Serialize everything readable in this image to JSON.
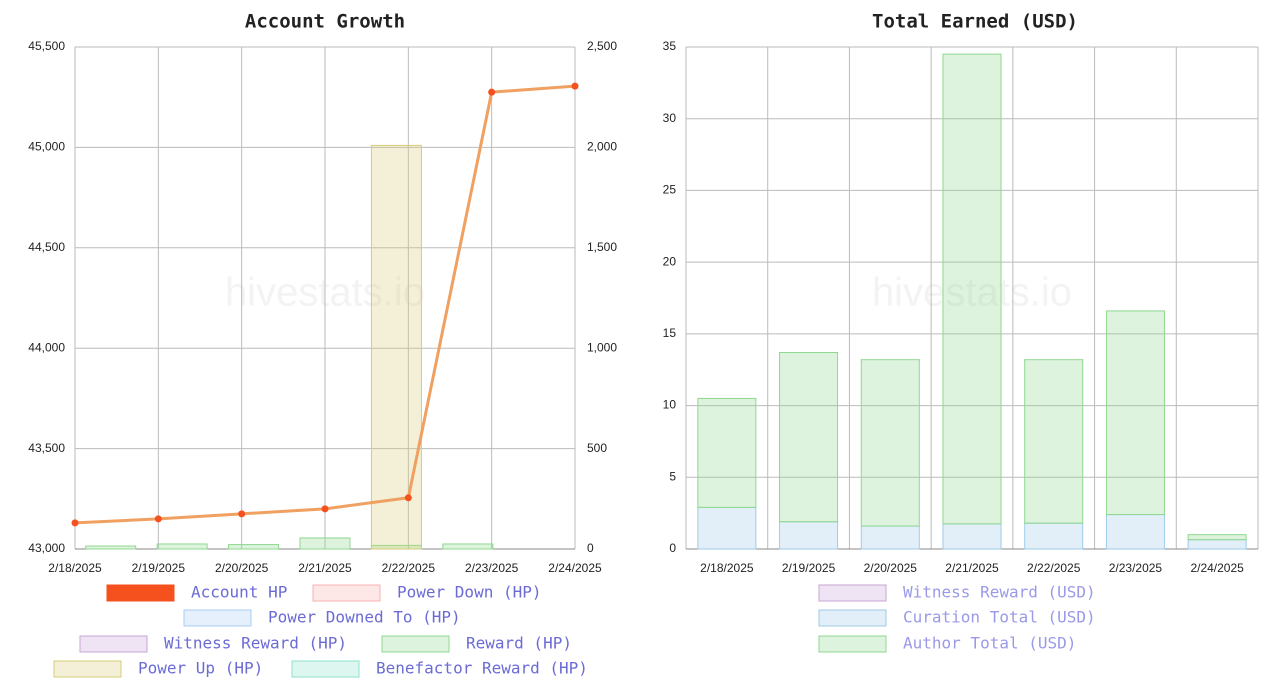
{
  "chart_data": [
    {
      "type": "line",
      "title": "Account Growth",
      "watermark": "hivestats.io",
      "categories": [
        "2/18/2025",
        "2/19/2025",
        "2/20/2025",
        "2/21/2025",
        "2/22/2025",
        "2/23/2025",
        "2/24/2025"
      ],
      "ylim": [
        43000,
        45500
      ],
      "yticks": [
        {
          "value": 43000,
          "label": "43,000"
        },
        {
          "value": 43500,
          "label": "43,500"
        },
        {
          "value": 44000,
          "label": "44,000"
        },
        {
          "value": 44500,
          "label": "44,500"
        },
        {
          "value": 45000,
          "label": "45,000"
        },
        {
          "value": 45500,
          "label": "45,500"
        }
      ],
      "y2lim": [
        0,
        2500
      ],
      "y2ticks": [
        0,
        500,
        {
          "value": 1000,
          "label": "1,000"
        },
        {
          "value": 1500,
          "label": "1,500"
        },
        {
          "value": 2000,
          "label": "2,000"
        },
        {
          "value": 2500,
          "label": "2,500"
        }
      ],
      "grid": true,
      "series": [
        {
          "name": "Account HP",
          "color": "#f4511e",
          "type": "line",
          "values": [
            43130,
            43150,
            43175,
            43200,
            43255,
            45275,
            45305
          ]
        },
        {
          "name": "Power Down (HP)",
          "color": "#f8b0b0",
          "type": "bar",
          "axis": "y2",
          "values": [
            0,
            0,
            0,
            0,
            0,
            0,
            0
          ]
        },
        {
          "name": "Power Downed To (HP)",
          "color": "#a8cdf5",
          "type": "bar",
          "axis": "y2",
          "values": [
            0,
            0,
            0,
            0,
            0,
            0,
            0
          ]
        },
        {
          "name": "Witness Reward (HP)",
          "color": "#c9a6d6",
          "type": "bar",
          "axis": "y2",
          "values": [
            0,
            0,
            0,
            0,
            0,
            0,
            0
          ]
        },
        {
          "name": "Reward (HP)",
          "color": "#8fd88f",
          "type": "bar",
          "axis": "y2",
          "values": [
            15,
            25,
            22,
            55,
            18,
            25,
            0
          ]
        },
        {
          "name": "Power Up (HP)",
          "color": "#d6cc7a",
          "type": "bar",
          "axis": "y2",
          "values": [
            0,
            0,
            0,
            0,
            2010,
            0,
            0
          ]
        },
        {
          "name": "Benefactor Reward (HP)",
          "color": "#8fe0cc",
          "type": "bar",
          "axis": "y2",
          "values": [
            0,
            0,
            0,
            0,
            0,
            0,
            0
          ]
        }
      ]
    },
    {
      "type": "stacked_bar",
      "title": "Total Earned (USD)",
      "watermark": "hivestats.io",
      "categories": [
        "2/18/2025",
        "2/19/2025",
        "2/20/2025",
        "2/21/2025",
        "2/22/2025",
        "2/23/2025",
        "2/24/2025"
      ],
      "ylim": [
        0,
        35
      ],
      "yticks": [
        0,
        5,
        10,
        15,
        20,
        25,
        30,
        35
      ],
      "grid": true,
      "series": [
        {
          "name": "Witness Reward (USD)",
          "color": "#c9a6d6",
          "values": [
            0,
            0,
            0,
            0,
            0,
            0,
            0
          ]
        },
        {
          "name": "Curation Total (USD)",
          "color": "#9fcbe8",
          "values": [
            2.9,
            1.9,
            1.6,
            1.75,
            1.8,
            2.4,
            0.65
          ]
        },
        {
          "name": "Author Total (USD)",
          "color": "#8fd88f",
          "values": [
            7.6,
            11.8,
            11.6,
            32.75,
            11.4,
            14.2,
            0.35
          ]
        }
      ]
    }
  ]
}
